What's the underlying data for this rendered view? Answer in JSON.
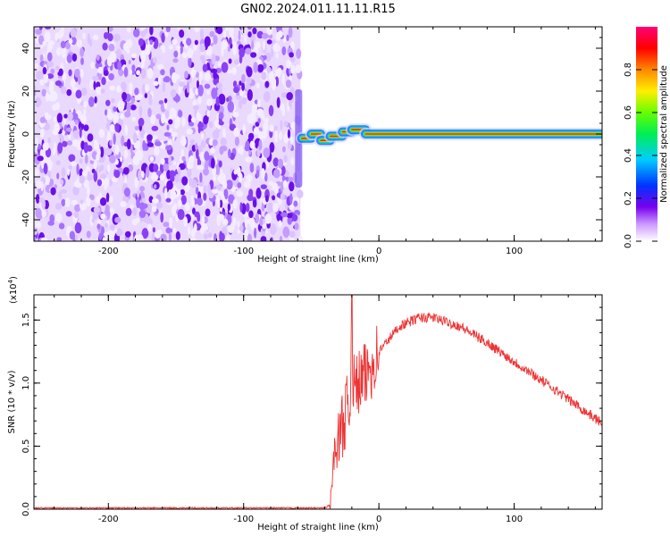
{
  "title": "GN02.2024.011.11.11.R15",
  "chart_data": [
    {
      "type": "heatmap",
      "xlabel": "Height of straight line (km)",
      "ylabel": "Frequency (Hz)",
      "xlim": [
        -255,
        165
      ],
      "ylim": [
        -50,
        50
      ],
      "xticks": [
        -200,
        -100,
        0,
        100
      ],
      "xtick_labels": [
        "-200",
        "-100",
        "0",
        "100"
      ],
      "yticks": [
        -40,
        -20,
        0,
        20,
        40
      ],
      "ytick_labels": [
        "-40",
        "-20",
        "0",
        "20",
        "40"
      ],
      "colorbar": {
        "label": "Normalized spectral amplitude",
        "range": [
          0,
          1
        ],
        "ticks": [
          0.0,
          0.2,
          0.4,
          0.6,
          0.8
        ],
        "tick_labels": [
          "0.0",
          "0.2",
          "0.4",
          "0.6",
          "0.8"
        ],
        "colormap": "white-purple-blue-cyan-green-yellow-red-pink"
      },
      "noise_region_x": [
        -255,
        -58
      ],
      "signal_line_segments": [
        {
          "x": [
            -57,
            -50
          ],
          "y": -2
        },
        {
          "x": [
            -50,
            -43
          ],
          "y": 0
        },
        {
          "x": [
            -43,
            -36
          ],
          "y": -3
        },
        {
          "x": [
            -36,
            -27
          ],
          "y": -1
        },
        {
          "x": [
            -27,
            -20
          ],
          "y": 1
        },
        {
          "x": [
            -20,
            -10
          ],
          "y": 2
        },
        {
          "x": [
            -10,
            165
          ],
          "y": 0
        }
      ]
    },
    {
      "type": "line",
      "xlabel": "Height of straight line (km)",
      "ylabel": "SNR (10 * v/v)",
      "multiplier": "(x10",
      "multiplier_exp": "4",
      "multiplier_close": ")",
      "xlim": [
        -255,
        165
      ],
      "ylim": [
        0,
        1.7
      ],
      "xticks": [
        -200,
        -100,
        0,
        100
      ],
      "xtick_labels": [
        "-200",
        "-100",
        "0",
        "100"
      ],
      "yticks": [
        0,
        0.5,
        1.0,
        1.5
      ],
      "ytick_labels": [
        "0.0",
        "0.5",
        "1.0",
        "1.5"
      ],
      "series_color": "#ee3333",
      "key_points": {
        "x": [
          -255,
          -40,
          -36,
          -33,
          -30,
          -25,
          -21,
          -20,
          -19,
          -10,
          0,
          15,
          30,
          40,
          60,
          80,
          100,
          130,
          165
        ],
        "y": [
          0.01,
          0.01,
          0.03,
          0.45,
          0.55,
          0.75,
          0.85,
          1.7,
          0.95,
          1.05,
          1.25,
          1.45,
          1.52,
          1.52,
          1.45,
          1.32,
          1.17,
          0.95,
          0.68
        ]
      }
    }
  ]
}
